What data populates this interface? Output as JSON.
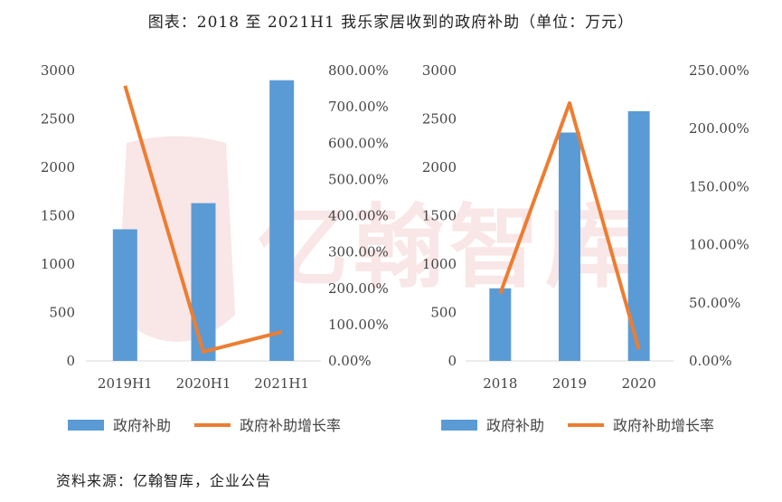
{
  "title": "图表：2018 至 2021H1 我乐家居收到的政府补助（单位：万元）",
  "source": "资料来源：亿翰智库，企业公告",
  "watermark": "亿翰智库",
  "colors": {
    "bar": "#5b9bd5",
    "line": "#ed7d31",
    "axis": "#d9d9d9"
  },
  "chart_data": [
    {
      "type": "bar",
      "categories": [
        "2019H1",
        "2020H1",
        "2021H1"
      ],
      "series": [
        {
          "name": "政府补助",
          "type": "bar",
          "axis": "left",
          "values": [
            1360,
            1630,
            2900
          ]
        },
        {
          "name": "政府补助增长率",
          "type": "line",
          "axis": "right",
          "values": [
            758,
            25,
            80
          ]
        }
      ],
      "ylim": [
        0,
        3000
      ],
      "yticks": [
        "0",
        "500",
        "1000",
        "1500",
        "2000",
        "2500",
        "3000"
      ],
      "y2lim": [
        0,
        800
      ],
      "y2ticks": [
        "0.00%",
        "100.00%",
        "200.00%",
        "300.00%",
        "400.00%",
        "500.00%",
        "600.00%",
        "700.00%",
        "800.00%"
      ],
      "legend": "bottom"
    },
    {
      "type": "bar",
      "categories": [
        "2018",
        "2019",
        "2020"
      ],
      "series": [
        {
          "name": "政府补助",
          "type": "bar",
          "axis": "left",
          "values": [
            750,
            2360,
            2580
          ]
        },
        {
          "name": "政府补助增长率",
          "type": "line",
          "axis": "right",
          "values": [
            58,
            222,
            10
          ]
        }
      ],
      "ylim": [
        0,
        3000
      ],
      "yticks": [
        "0",
        "500",
        "1000",
        "1500",
        "2000",
        "2500",
        "3000"
      ],
      "y2lim": [
        0,
        250
      ],
      "y2ticks": [
        "0.00%",
        "50.00%",
        "100.00%",
        "150.00%",
        "200.00%",
        "250.00%"
      ],
      "legend": "bottom"
    }
  ]
}
